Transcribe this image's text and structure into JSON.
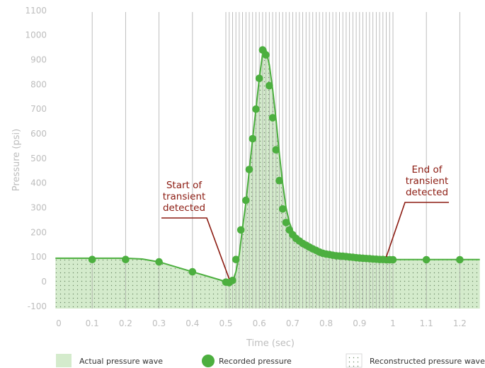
{
  "chart_data": {
    "type": "line",
    "xlabel": "Time (sec)",
    "ylabel": "Pressure (psi)",
    "xlim": [
      -0.01,
      1.26
    ],
    "ylim": [
      -100,
      1100
    ],
    "x_ticks": [
      "0",
      "0.1",
      "0.2",
      "0.3",
      "0.4",
      "0.5",
      "0.6",
      "0.7",
      "0.8",
      "0.9",
      "1",
      "1.1",
      "1.2"
    ],
    "y_ticks": [
      "-100",
      "0",
      "100",
      "200",
      "300",
      "400",
      "500",
      "600",
      "700",
      "800",
      "900",
      "1000",
      "1100"
    ],
    "colors": {
      "line": "#4caf3f",
      "fill": "#d4ebcc",
      "annotation": "#8b1a10",
      "gridline": "#9e9e9e",
      "tick_text": "#bdbdbd"
    },
    "series": [
      {
        "name": "Actual pressure wave",
        "style": "area",
        "x": [
          -0.01,
          0.1,
          0.2,
          0.25,
          0.3,
          0.35,
          0.4,
          0.45,
          0.5,
          0.51,
          0.52,
          0.53,
          0.54,
          0.55,
          0.56,
          0.57,
          0.58,
          0.59,
          0.6,
          0.61,
          0.62,
          0.63,
          0.64,
          0.65,
          0.66,
          0.67,
          0.68,
          0.69,
          0.7,
          0.72,
          0.74,
          0.76,
          0.78,
          0.8,
          0.83,
          0.86,
          0.9,
          0.95,
          1.0,
          1.1,
          1.26
        ],
        "y": [
          95,
          95,
          95,
          92,
          80,
          60,
          40,
          20,
          0,
          -6,
          0,
          40,
          110,
          220,
          320,
          450,
          580,
          700,
          825,
          925,
          940,
          880,
          780,
          660,
          520,
          400,
          300,
          240,
          205,
          175,
          155,
          140,
          128,
          118,
          108,
          100,
          95,
          90,
          90,
          90,
          90
        ]
      },
      {
        "name": "Recorded pressure",
        "style": "markers",
        "x": [
          0.1,
          0.2,
          0.3,
          0.4,
          0.5,
          0.51,
          0.52,
          0.53,
          0.545,
          0.56,
          0.57,
          0.58,
          0.59,
          0.6,
          0.61,
          0.62,
          0.63,
          0.64,
          0.65,
          0.66,
          0.67,
          0.68,
          0.69,
          0.7,
          0.71,
          0.72,
          0.73,
          0.74,
          0.75,
          0.76,
          0.77,
          0.78,
          0.79,
          0.8,
          0.81,
          0.82,
          0.83,
          0.84,
          0.85,
          0.86,
          0.87,
          0.88,
          0.89,
          0.9,
          0.91,
          0.92,
          0.93,
          0.94,
          0.95,
          0.96,
          0.97,
          0.98,
          0.99,
          1.0,
          1.1,
          1.2
        ],
        "y": [
          90,
          90,
          80,
          40,
          -2,
          -4,
          5,
          90,
          210,
          330,
          455,
          580,
          700,
          825,
          940,
          920,
          795,
          665,
          535,
          410,
          295,
          240,
          210,
          190,
          175,
          165,
          155,
          148,
          140,
          133,
          127,
          120,
          115,
          112,
          110,
          107,
          105,
          104,
          103,
          102,
          100,
          99,
          97,
          96,
          95,
          94,
          93,
          92,
          91,
          90,
          90,
          89,
          89,
          89,
          89,
          89
        ]
      },
      {
        "name": "Reconstructed pressure wave",
        "style": "dotted-area"
      }
    ],
    "sample_lines_x": [
      0.1,
      0.2,
      0.3,
      0.4,
      0.5,
      0.51,
      0.52,
      0.53,
      0.54,
      0.55,
      0.56,
      0.57,
      0.58,
      0.59,
      0.6,
      0.61,
      0.62,
      0.63,
      0.64,
      0.65,
      0.66,
      0.67,
      0.68,
      0.69,
      0.7,
      0.71,
      0.72,
      0.73,
      0.74,
      0.75,
      0.76,
      0.77,
      0.78,
      0.79,
      0.8,
      0.81,
      0.82,
      0.83,
      0.84,
      0.85,
      0.86,
      0.87,
      0.88,
      0.89,
      0.9,
      0.91,
      0.92,
      0.93,
      0.94,
      0.95,
      0.96,
      0.97,
      0.98,
      0.99,
      1.0,
      1.1,
      1.2
    ],
    "annotations": [
      {
        "lines": [
          "Start of",
          "transient",
          "detected"
        ],
        "point": [
          0.51,
          -6
        ]
      },
      {
        "lines": [
          "End of",
          "transient",
          "detected"
        ],
        "point": [
          0.98,
          89
        ]
      }
    ]
  }
}
